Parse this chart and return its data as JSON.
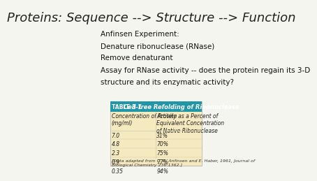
{
  "title": "Proteins: Sequence --> Structure --> Function",
  "title_fontsize": 13,
  "title_color": "#222222",
  "background_color": "#f5f5f0",
  "text_lines": [
    "Anfinsen Experiment:",
    "Denature ribonuclease (RNase)",
    "Remove denaturant",
    "Assay for RNase activity -- does the protein regain its 3-D",
    "structure and its enzymatic activity?"
  ],
  "table_header_bg": "#2196a8",
  "table_header_text": "#ffffff",
  "table_label": "TABLE 3-1",
  "table_title": "Cell-free Refolding of Ribonuclease",
  "table_bg": "#f5e9c0",
  "table_col1_header": "Concentration of Protein\n(mg/ml)",
  "table_col2_header": "Activity as a Percent of\nEquivalent Concentration\nof Native Ribonuclease",
  "table_data": [
    [
      "7.0",
      "31%"
    ],
    [
      "4.8",
      "70%"
    ],
    [
      "2.3",
      "75%"
    ],
    [
      "0.9",
      "77%"
    ],
    [
      "0.35",
      "94%"
    ]
  ],
  "table_footnote": "[Data adapted from C. B. Anfinsen and E. Haber, 1961, Journal of\nBiological Chemistry 236:1362.]",
  "table_fontsize": 5.5,
  "body_fontsize": 7.5
}
